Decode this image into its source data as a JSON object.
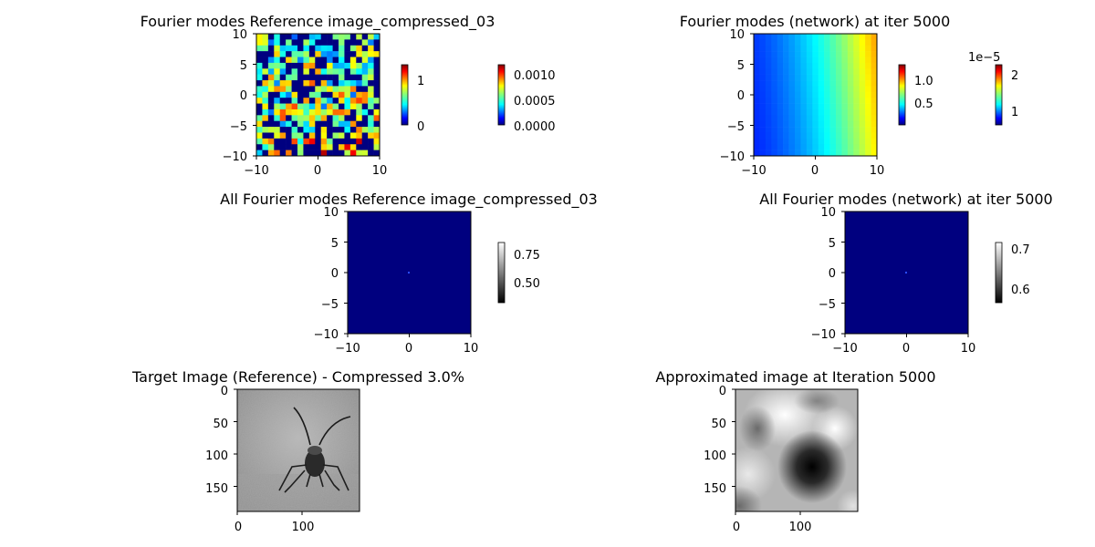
{
  "chart_data": [
    {
      "type": "heatmap",
      "title": "Fourier modes Reference image_compressed_03",
      "xlim": [
        -10,
        10
      ],
      "ylim": [
        -10,
        10
      ],
      "xticks": [
        "−10",
        "0",
        "10"
      ],
      "yticks": [
        "10",
        "5",
        "0",
        "−5",
        "−10"
      ],
      "colormap": "jet",
      "colorbars": [
        {
          "ticks": [
            "1",
            "0"
          ],
          "range": [
            0,
            1.35
          ]
        },
        {
          "ticks": [
            "0.0010",
            "0.0005",
            "0.0000"
          ],
          "range": [
            0,
            0.0012
          ]
        }
      ]
    },
    {
      "type": "heatmap",
      "title": "Fourier modes (network) at iter 5000",
      "xlim": [
        -10,
        10
      ],
      "ylim": [
        -10,
        10
      ],
      "xticks": [
        "−10",
        "0",
        "10"
      ],
      "yticks": [
        "10",
        "5",
        "0",
        "−5",
        "−10"
      ],
      "colormap": "jet",
      "colorbars": [
        {
          "ticks": [
            "1.0",
            "0.5"
          ],
          "range": [
            0.2,
            1.3
          ]
        },
        {
          "ticks": [
            "2",
            "1"
          ],
          "offset_label": "1e−5",
          "range": [
            0.5,
            2.3
          ]
        }
      ]
    },
    {
      "type": "heatmap",
      "title": "All Fourier modes Reference image_compressed_03",
      "xlim": [
        -10,
        10
      ],
      "ylim": [
        -10,
        10
      ],
      "xticks": [
        "−10",
        "0",
        "10"
      ],
      "yticks": [
        "10",
        "5",
        "0",
        "−5",
        "−10"
      ],
      "colormap": "gray",
      "colorbars": [
        {
          "ticks": [
            "0.75",
            "0.50"
          ],
          "range": [
            0.35,
            0.88
          ]
        }
      ]
    },
    {
      "type": "heatmap",
      "title": "All Fourier modes (network) at iter 5000",
      "xlim": [
        -10,
        10
      ],
      "ylim": [
        -10,
        10
      ],
      "xticks": [
        "−10",
        "0",
        "10"
      ],
      "yticks": [
        "10",
        "5",
        "0",
        "−5",
        "−10"
      ],
      "colormap": "gray",
      "colorbars": [
        {
          "ticks": [
            "0.7",
            "0.6"
          ],
          "range": [
            0.55,
            0.73
          ]
        }
      ]
    },
    {
      "type": "image",
      "title": "Target Image (Reference) - Compressed 3.0%",
      "xticks": [
        "0",
        "100"
      ],
      "yticks": [
        "0",
        "50",
        "100",
        "150"
      ]
    },
    {
      "type": "image",
      "title": "Approximated image at Iteration 5000",
      "xticks": [
        "0",
        "100"
      ],
      "yticks": [
        "0",
        "50",
        "100",
        "150"
      ]
    }
  ]
}
